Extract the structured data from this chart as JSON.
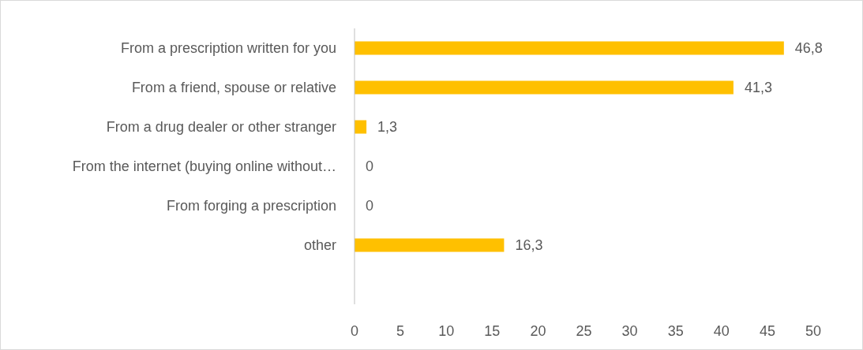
{
  "chart_data": {
    "type": "bar",
    "orientation": "horizontal",
    "categories": [
      "From a prescription written for you",
      "From a friend, spouse or relative",
      "From a drug dealer or other stranger",
      "From the internet (buying online without…",
      "From forging a prescription",
      "other"
    ],
    "values": [
      46.8,
      41.3,
      1.3,
      0,
      0,
      16.3
    ],
    "value_labels": [
      "46,8",
      "41,3",
      "1,3",
      "0",
      "0",
      "16,3"
    ],
    "color": "#ffc000",
    "xlim": [
      0,
      50
    ],
    "xticks": [
      0,
      5,
      10,
      15,
      20,
      25,
      30,
      35,
      40,
      45,
      50
    ],
    "grid": false
  }
}
